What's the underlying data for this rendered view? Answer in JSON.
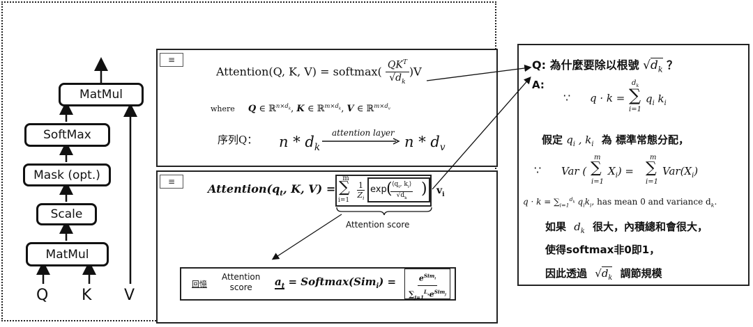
{
  "diagram": {
    "blocks": [
      "MatMul",
      "SoftMax",
      "Mask (opt.)",
      "Scale",
      "MatMul"
    ],
    "inputs": [
      "Q",
      "K",
      "V"
    ]
  },
  "panel_top": {
    "formula_lhs": "Attention(Q, K, V) = softmax(",
    "formula_frac_num": "QK",
    "formula_frac_num_sup": "T",
    "formula_frac_den": "√d",
    "formula_frac_den_sub": "k",
    "formula_rhs": ")V",
    "where_label": "where",
    "where_rest": "Q ∈ ℝ^{n×d_k}, K ∈ ℝ^{m×d_k}, V ∈ ℝ^{m×d_v}",
    "seq_label": "序列Q：",
    "seq_left": "n * d",
    "seq_left_sub": "k",
    "seq_arrow_label": "attention layer",
    "seq_right": "n * d",
    "seq_right_sub": "v"
  },
  "panel_bottom": {
    "formula_lhs": "Attention(q",
    "formula_lhs2": ", K, V) =",
    "sum_sup": "m",
    "sum_sub": "i=1",
    "one": "1",
    "Z": "Z",
    "exp_label": "exp",
    "vi": "v",
    "score_label": "Attention score",
    "recall_label": "回憶",
    "recall_attention": "Attention",
    "recall_score": "score",
    "recall_formula": "a",
    "recall_formula_rest": " = Softmax(Sim",
    "recall_formula_end": ") =",
    "recall_num": "e",
    "recall_num_sup": "Sim",
    "recall_den": "∑",
    "recall_den_rest": "e",
    "recall_den_sup": "Sim"
  },
  "right_note": {
    "question": "Q: 為什麼要除以根號",
    "question_mark": "？",
    "answer_label": "A:",
    "because": "∵",
    "dot_product": "q · k =",
    "sum_sup": "d",
    "sum_sup_sub": "k",
    "sum_sub": "i=1",
    "sum_body": "q",
    "assume": "假定",
    "assume_vars": "q",
    "assume_rest": "為 標準常態分配，",
    "var_lhs": "Var (",
    "var_mid": "X",
    "var_rhs": ") =",
    "var_sum_sup": "m",
    "var_sum_sub": "i=1",
    "var_body": "Var(X",
    "mean_line": "has mean 0 and variance d",
    "line1_a": "如果",
    "line1_b": "很大，內積總和會很大，",
    "line2": "使得softmax非0即1，",
    "line3_a": "因此透過",
    "line3_b": "調節規模"
  }
}
